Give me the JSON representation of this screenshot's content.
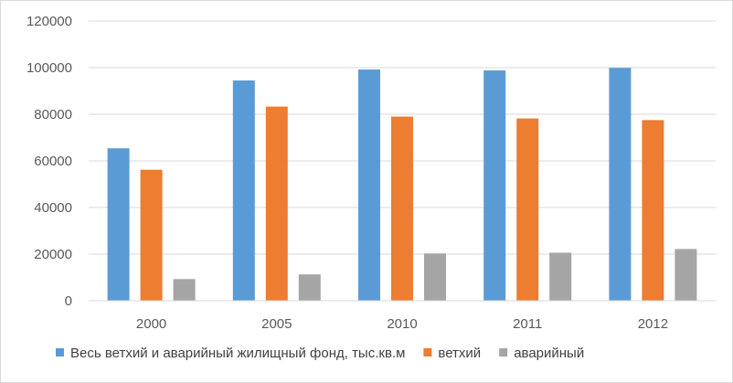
{
  "chart_data": {
    "type": "bar",
    "title": "",
    "xlabel": "",
    "ylabel": "",
    "categories": [
      "2000",
      "2005",
      "2010",
      "2011",
      "2012"
    ],
    "series": [
      {
        "name": "Весь ветхий и аварийный жилищный фонд, тыс.кв.м",
        "color": "#5b9bd5",
        "values": [
          65400,
          94500,
          99200,
          98800,
          99900
        ]
      },
      {
        "name": "ветхий",
        "color": "#ed7d31",
        "values": [
          56200,
          83300,
          79000,
          78200,
          77500
        ]
      },
      {
        "name": "аварийный",
        "color": "#a5a5a5",
        "values": [
          9300,
          11300,
          20300,
          20600,
          22200
        ]
      }
    ],
    "ylim": [
      0,
      120000
    ],
    "yticks": [
      "0",
      "20000",
      "40000",
      "60000",
      "80000",
      "100000",
      "120000"
    ],
    "grid": true,
    "legend_position": "bottom"
  }
}
